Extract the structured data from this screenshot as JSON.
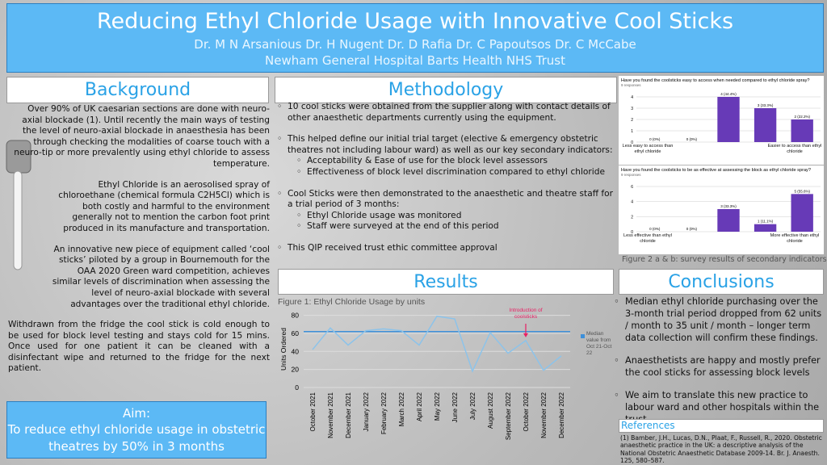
{
  "header": {
    "title": "Reducing Ethyl Chloride Usage with Innovative Cool Sticks",
    "authors": "Dr. M N Arsanious Dr. H Nugent Dr. D Rafia Dr. C Papoutsos Dr. C McCabe",
    "affiliation": "Newham General Hospital Barts Health NHS Trust"
  },
  "background": {
    "heading": "Background",
    "paragraphs": [
      "Over 90% of UK caesarian sections are done with neuro-axial blockade (1). Until recently the main ways of testing the level of neuro-axial blockade in anaesthesia has been through checking the modalities of coarse touch with a neuro-tip or more prevalently using ethyl chloride to assess temperature.",
      "Ethyl Chloride is an aerosolised spray of chloroethane (chemical formula C2H5Cl) which is both costly and harmful to the environment generally not to mention the carbon foot print produced in its manufacture and transportation.",
      "An innovative new piece of equipment called ‘cool sticks’ piloted by a group in Bournemouth for the OAA 2020 Green ward competition, achieves similar levels of discrimination when assessing the level of neuro-axial blockade with several advantages over the traditional ethyl chloride.",
      "Withdrawn from the fridge the cool stick is cold enough to be used for block level testing and stays cold for 15 mins. Once used for one patient it can be cleaned with a disinfectant wipe and returned to the fridge for the next patient."
    ]
  },
  "methodology": {
    "heading": "Methodology",
    "items": [
      {
        "text": "10 cool sticks were obtained from the supplier along with contact details of other anaesthetic departments currently using the equipment.",
        "sub": []
      },
      {
        "text": "This helped define our initial trial target (elective & emergency obstetric theatres not including labour ward) as well as our key secondary indicators:",
        "sub": [
          "Acceptability & Ease of use for the block level assessors",
          "Effectiveness of block level discrimination compared to ethyl chloride"
        ]
      },
      {
        "text": "Cool Sticks were then demonstrated to the anaesthetic and theatre staff for a trial period of 3 months:",
        "sub": [
          "Ethyl Chloride usage was monitored",
          "Staff were surveyed at the end of this period"
        ]
      },
      {
        "text": "This QIP received trust ethic committee approval",
        "sub": []
      }
    ]
  },
  "aim": {
    "heading": "Aim:",
    "text": "To reduce ethyl chloride usage in obstetric theatres by 50% in 3 months"
  },
  "results": {
    "heading": "Results"
  },
  "conclusions": {
    "heading": "Conclusions",
    "items": [
      "Median ethyl chloride purchasing over the 3-month trial period dropped from 62 units / month to 35 unit / month – longer term data collection will confirm these findings.",
      "Anaesthetists are happy and mostly prefer the cool sticks for assessing block levels",
      "We aim to translate this new practice to labour ward and other hospitals within the trust"
    ]
  },
  "references": {
    "heading": "References",
    "items": [
      "(1) Bamber, J.H., Lucas, D.N., Plaat, F., Russell, R., 2020. Obstetric anaesthetic practice in the UK: a descriptive analysis of the National Obstetric Anaesthetic Database 2009-14. Br. J. Anaesth. 125, 580–587."
    ]
  },
  "figure2_caption": "Figure 2 a & b: survey results of secondary indicators",
  "chart_data": [
    {
      "type": "line",
      "caption": "Figure 1: Ethyl Chloride Usage by units",
      "y_label": "Units Ordered",
      "categories": [
        "October 2021",
        "November 2021",
        "December 2021",
        "January 2022",
        "February 2022",
        "March 2022",
        "April 2022",
        "May 2022",
        "June 2022",
        "July 2022",
        "August 2022",
        "September 2022",
        "October 2022",
        "November 2022",
        "December 2022"
      ],
      "values": [
        42,
        66,
        47,
        63,
        65,
        63,
        47,
        79,
        76,
        18,
        61,
        38,
        52,
        19,
        35
      ],
      "color": "#8cc3ea",
      "median": {
        "name": "Median value from Oct 21-Oct 22",
        "value": 62,
        "color": "#3d8fd9"
      },
      "annotation": {
        "text": "Introduction of coolsticks",
        "color": "#e91e63"
      },
      "ylim": [
        0,
        85
      ],
      "yticks": [
        0,
        20,
        40,
        60,
        80
      ],
      "grid": true
    },
    {
      "type": "bar",
      "title": "Have you found the coolsticks easy to access when needed compared to ethyl chloride spray?",
      "subtitle": "9 responses",
      "categories": [
        null,
        null,
        null,
        null,
        null
      ],
      "values": [
        0,
        0,
        4,
        3,
        2
      ],
      "value_labels": [
        "0 (0%)",
        "0 (0%)",
        "4 (44.4%)",
        "3 (33.3%)",
        "2 (22.2%)"
      ],
      "color": "#673ab7",
      "ylim": [
        0,
        4
      ],
      "yticks": [
        0,
        1,
        2,
        3,
        4
      ],
      "grid": true,
      "x_end_labels": [
        "Less easy to access than ethyl chloride",
        "Easier to access than ethyl chloride"
      ]
    },
    {
      "type": "bar",
      "title": "Have you found the coolsticks to be as effective at assessing the block as ethyl chloride spray?",
      "subtitle": "9 responses",
      "categories": [
        null,
        null,
        null,
        null,
        null
      ],
      "values": [
        0,
        0,
        3,
        1,
        5
      ],
      "value_labels": [
        "0 (0%)",
        "0 (0%)",
        "3 (33.3%)",
        "1 (11.1%)",
        "5 (55.6%)"
      ],
      "color": "#673ab7",
      "ylim": [
        0,
        6
      ],
      "yticks": [
        0,
        2,
        4,
        6
      ],
      "grid": true,
      "x_end_labels": [
        "Less effective than ethyl chloride",
        "More effective than ethyl chloride"
      ]
    }
  ]
}
